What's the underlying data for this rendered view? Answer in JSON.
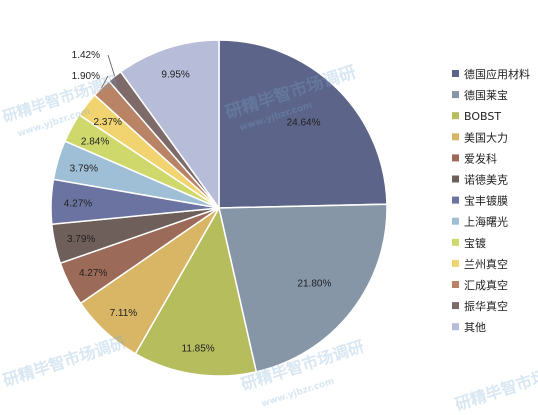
{
  "chart_data": {
    "type": "pie",
    "title": "",
    "legend_position": "right",
    "slices": [
      {
        "label": "德国应用材料",
        "value": 24.64,
        "display": "24.64%",
        "color": "#5d6489"
      },
      {
        "label": "德国莱宝",
        "value": 21.8,
        "display": "21.80%",
        "color": "#8696a7"
      },
      {
        "label": "BOBST",
        "value": 11.85,
        "display": "11.85%",
        "color": "#b6bd5d"
      },
      {
        "label": "美国大力",
        "value": 7.11,
        "display": "7.11%",
        "color": "#d8b666"
      },
      {
        "label": "爱发科",
        "value": 4.27,
        "display": "4.27%",
        "color": "#9c6a58"
      },
      {
        "label": "诺德美克",
        "value": 3.79,
        "display": "3.79%",
        "color": "#6e5f5a"
      },
      {
        "label": "宝丰镀膜",
        "value": 4.27,
        "display": "4.27%",
        "color": "#6b74a1"
      },
      {
        "label": "上海曙光",
        "value": 3.79,
        "display": "3.79%",
        "color": "#9fbfd6"
      },
      {
        "label": "宝镀",
        "value": 2.84,
        "display": "2.84%",
        "color": "#cfd96b"
      },
      {
        "label": "兰州真空",
        "value": 2.37,
        "display": "2.37%",
        "color": "#f1d46f"
      },
      {
        "label": "汇成真空",
        "value": 1.9,
        "display": "1.90%",
        "color": "#b98366"
      },
      {
        "label": "振华真空",
        "value": 1.42,
        "display": "1.42%",
        "color": "#7d6a69"
      },
      {
        "label": "其他",
        "value": 9.95,
        "display": "9.95%",
        "color": "#b7bcd8"
      }
    ]
  },
  "watermark": {
    "cn": "研精毕智市场调研",
    "url": "www.yjbzr.com"
  }
}
